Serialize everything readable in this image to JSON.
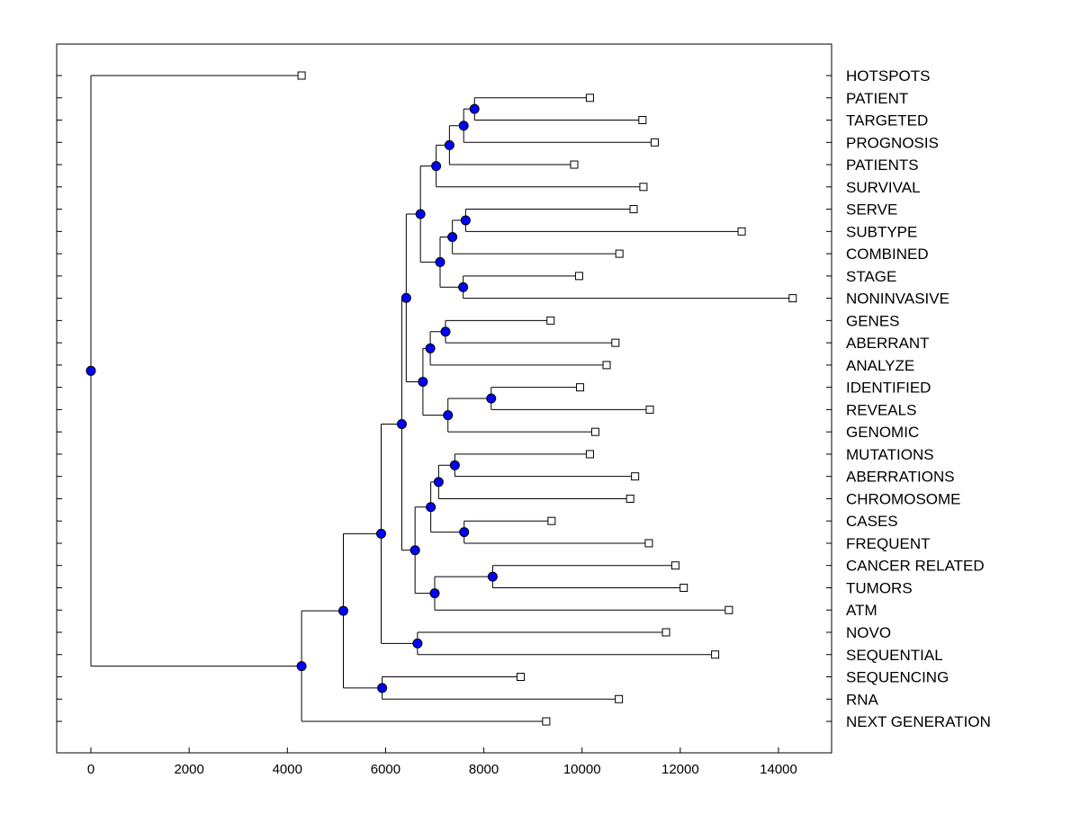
{
  "chart_data": {
    "type": "dendrogram",
    "orientation": "horizontal",
    "xlim": [
      -700,
      15000
    ],
    "x_ticks": [
      0,
      2000,
      4000,
      6000,
      8000,
      10000,
      12000,
      14000
    ],
    "x_tick_labels": [
      "0",
      "2000",
      "4000",
      "6000",
      "8000",
      "10000",
      "12000",
      "14000"
    ],
    "leaves": [
      {
        "label": "HOTSPOTS",
        "x": 4290
      },
      {
        "label": "PATIENT",
        "x": 10160
      },
      {
        "label": "TARGETED",
        "x": 11230
      },
      {
        "label": "PROGNOSIS",
        "x": 11480
      },
      {
        "label": "PATIENTS",
        "x": 9840
      },
      {
        "label": "SURVIVAL",
        "x": 11250
      },
      {
        "label": "SERVE",
        "x": 11050
      },
      {
        "label": "SUBTYPE",
        "x": 13250
      },
      {
        "label": "COMBINED",
        "x": 10760
      },
      {
        "label": "STAGE",
        "x": 9940
      },
      {
        "label": "NONINVASIVE",
        "x": 14290
      },
      {
        "label": "GENES",
        "x": 9360
      },
      {
        "label": "ABERRANT",
        "x": 10680
      },
      {
        "label": "ANALYZE",
        "x": 10500
      },
      {
        "label": "IDENTIFIED",
        "x": 9960
      },
      {
        "label": "REVEALS",
        "x": 11380
      },
      {
        "label": "GENOMIC",
        "x": 10270
      },
      {
        "label": "MUTATIONS",
        "x": 10160
      },
      {
        "label": "ABERRATIONS",
        "x": 11080
      },
      {
        "label": "CHROMOSOME",
        "x": 10980
      },
      {
        "label": "CASES",
        "x": 9380
      },
      {
        "label": "FREQUENT",
        "x": 11360
      },
      {
        "label": "CANCER RELATED",
        "x": 11900
      },
      {
        "label": "TUMORS",
        "x": 12070
      },
      {
        "label": "ATM",
        "x": 12990
      },
      {
        "label": "NOVO",
        "x": 11710
      },
      {
        "label": "SEQUENTIAL",
        "x": 12710
      },
      {
        "label": "SEQUENCING",
        "x": 8750
      },
      {
        "label": "RNA",
        "x": 10750
      },
      {
        "label": "NEXT GENERATION",
        "x": 9270
      }
    ],
    "merges": [
      {
        "id": "m1",
        "x": 7810,
        "children": [
          "PATIENT",
          "TARGETED"
        ]
      },
      {
        "id": "m2",
        "x": 7590,
        "children": [
          "m1",
          "PROGNOSIS"
        ]
      },
      {
        "id": "m3",
        "x": 7300,
        "children": [
          "m2",
          "PATIENTS"
        ]
      },
      {
        "id": "m4",
        "x": 7030,
        "children": [
          "m3",
          "SURVIVAL"
        ]
      },
      {
        "id": "m5",
        "x": 7630,
        "children": [
          "SERVE",
          "SUBTYPE"
        ]
      },
      {
        "id": "m6",
        "x": 7360,
        "children": [
          "m5",
          "COMBINED"
        ]
      },
      {
        "id": "m7",
        "x": 7580,
        "children": [
          "STAGE",
          "NONINVASIVE"
        ]
      },
      {
        "id": "m8",
        "x": 7110,
        "children": [
          "m6",
          "m7"
        ]
      },
      {
        "id": "m9",
        "x": 6710,
        "children": [
          "m4",
          "m8"
        ]
      },
      {
        "id": "m10",
        "x": 7220,
        "children": [
          "GENES",
          "ABERRANT"
        ]
      },
      {
        "id": "m11",
        "x": 6910,
        "children": [
          "m10",
          "ANALYZE"
        ]
      },
      {
        "id": "m12",
        "x": 8150,
        "children": [
          "IDENTIFIED",
          "REVEALS"
        ]
      },
      {
        "id": "m13",
        "x": 7270,
        "children": [
          "m12",
          "GENOMIC"
        ]
      },
      {
        "id": "m14",
        "x": 6760,
        "children": [
          "m11",
          "m13"
        ]
      },
      {
        "id": "m15",
        "x": 6420,
        "children": [
          "m9",
          "m14"
        ]
      },
      {
        "id": "m16",
        "x": 7410,
        "children": [
          "MUTATIONS",
          "ABERRATIONS"
        ]
      },
      {
        "id": "m17",
        "x": 7080,
        "children": [
          "m16",
          "CHROMOSOME"
        ]
      },
      {
        "id": "m18",
        "x": 7600,
        "children": [
          "CASES",
          "FREQUENT"
        ]
      },
      {
        "id": "m19",
        "x": 6920,
        "children": [
          "m17",
          "m18"
        ]
      },
      {
        "id": "m20",
        "x": 8180,
        "children": [
          "CANCER RELATED",
          "TUMORS"
        ]
      },
      {
        "id": "m21",
        "x": 7000,
        "children": [
          "m20",
          "ATM"
        ]
      },
      {
        "id": "m22",
        "x": 6600,
        "children": [
          "m19",
          "m21"
        ]
      },
      {
        "id": "m23",
        "x": 6330,
        "children": [
          "m15",
          "m22"
        ]
      },
      {
        "id": "m24",
        "x": 6650,
        "children": [
          "NOVO",
          "SEQUENTIAL"
        ]
      },
      {
        "id": "m25",
        "x": 5910,
        "children": [
          "m23",
          "m24"
        ]
      },
      {
        "id": "m26",
        "x": 5930,
        "children": [
          "SEQUENCING",
          "RNA"
        ]
      },
      {
        "id": "m27",
        "x": 5140,
        "children": [
          "m25",
          "m26"
        ]
      },
      {
        "id": "m28",
        "x": 4290,
        "children": [
          "m27",
          "NEXT GENERATION"
        ]
      },
      {
        "id": "m29",
        "x": 0,
        "children": [
          "HOTSPOTS",
          "m28"
        ]
      }
    ],
    "title": "",
    "xlabel": "",
    "ylabel": "",
    "grid": false,
    "colors": {
      "node_fill": "#0000ff",
      "node_stroke": "#000000",
      "leaf_fill": "#ffffff",
      "line": "#000000",
      "background": "#ffffff"
    }
  }
}
